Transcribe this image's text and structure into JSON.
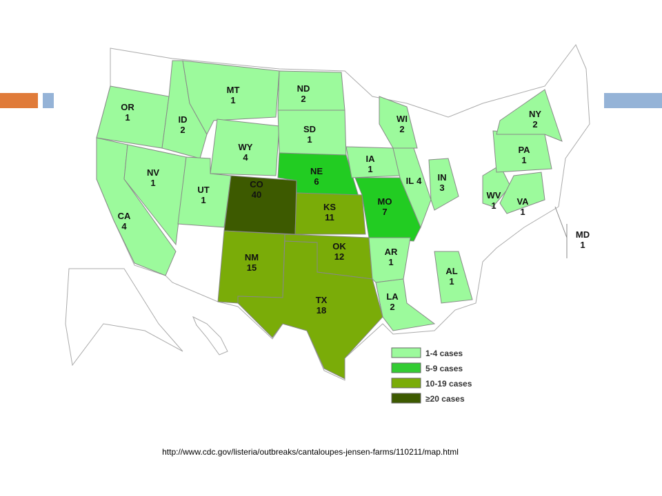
{
  "states": [
    {
      "code": "OR",
      "cases": 1,
      "color": "#9cfa9c"
    },
    {
      "code": "CA",
      "cases": 4,
      "color": "#9cfa9c"
    },
    {
      "code": "NV",
      "cases": 1,
      "color": "#9cfa9c"
    },
    {
      "code": "ID",
      "cases": 2,
      "color": "#9cfa9c"
    },
    {
      "code": "MT",
      "cases": 1,
      "color": "#9cfa9c"
    },
    {
      "code": "WY",
      "cases": 4,
      "color": "#9cfa9c"
    },
    {
      "code": "UT",
      "cases": 1,
      "color": "#9cfa9c"
    },
    {
      "code": "CO",
      "cases": 40,
      "color": "#3d5a00"
    },
    {
      "code": "NM",
      "cases": 15,
      "color": "#7aac08"
    },
    {
      "code": "ND",
      "cases": 2,
      "color": "#9cfa9c"
    },
    {
      "code": "SD",
      "cases": 1,
      "color": "#9cfa9c"
    },
    {
      "code": "NE",
      "cases": 6,
      "color": "#22cc22"
    },
    {
      "code": "KS",
      "cases": 11,
      "color": "#7aac08"
    },
    {
      "code": "OK",
      "cases": 12,
      "color": "#7aac08"
    },
    {
      "code": "TX",
      "cases": 18,
      "color": "#7aac08"
    },
    {
      "code": "IA",
      "cases": 1,
      "color": "#9cfa9c"
    },
    {
      "code": "MO",
      "cases": 7,
      "color": "#22cc22"
    },
    {
      "code": "AR",
      "cases": 1,
      "color": "#9cfa9c"
    },
    {
      "code": "LA",
      "cases": 2,
      "color": "#9cfa9c"
    },
    {
      "code": "WI",
      "cases": 2,
      "color": "#9cfa9c"
    },
    {
      "code": "IL",
      "cases": 4,
      "color": "#9cfa9c"
    },
    {
      "code": "IN",
      "cases": 3,
      "color": "#9cfa9c"
    },
    {
      "code": "AL",
      "cases": 1,
      "color": "#9cfa9c"
    },
    {
      "code": "WV",
      "cases": 1,
      "color": "#9cfa9c"
    },
    {
      "code": "VA",
      "cases": 1,
      "color": "#9cfa9c"
    },
    {
      "code": "PA",
      "cases": 1,
      "color": "#9cfa9c"
    },
    {
      "code": "NY",
      "cases": 2,
      "color": "#9cfa9c"
    },
    {
      "code": "MD",
      "cases": 1,
      "color": "#9cfa9c"
    }
  ],
  "legend": [
    {
      "label": "1-4 cases",
      "color": "#9cfa9c"
    },
    {
      "label": "5-9 cases",
      "color": "#33cc33"
    },
    {
      "label": "10-19 cases",
      "color": "#7aac08"
    },
    {
      "label": "≥20 cases",
      "color": "#3d5a00"
    }
  ],
  "source_url": "http://www.cdc.gov/listeria/outbreaks/cantaloupes-jensen-farms/110211/map.html"
}
